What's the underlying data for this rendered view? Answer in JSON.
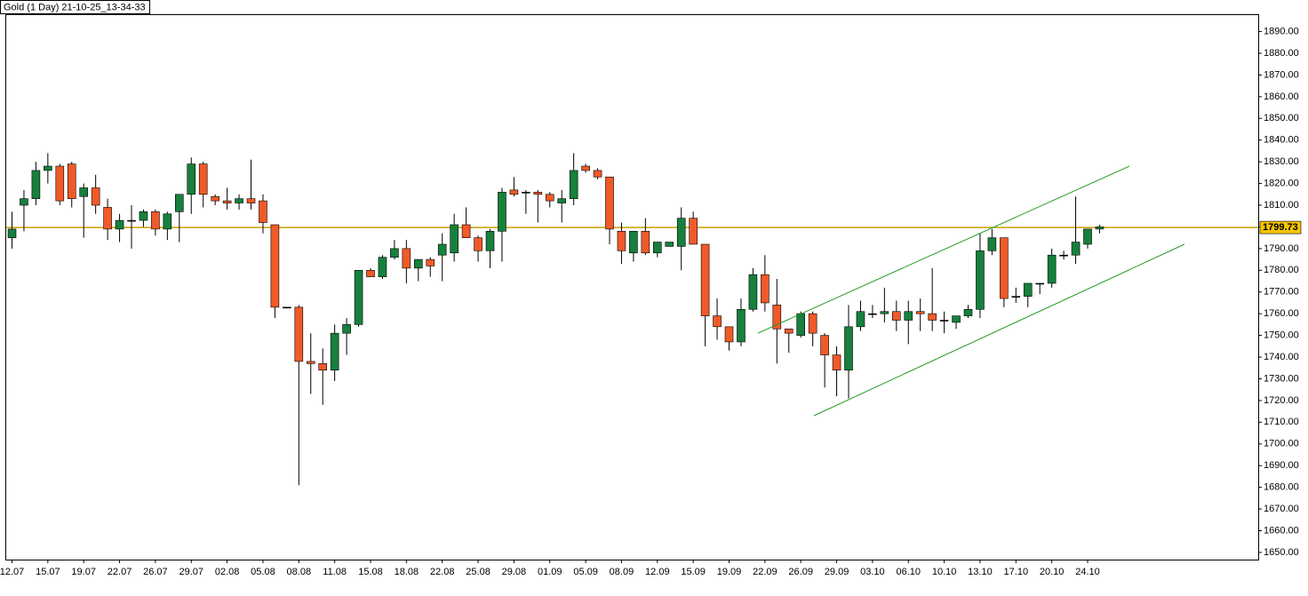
{
  "chart_data": {
    "type": "candlestick",
    "title": "Gold (1 Day) 21-10-25_13-34-33",
    "categories": [
      "12.07",
      null,
      null,
      "15.07",
      null,
      null,
      "19.07",
      null,
      null,
      "22.07",
      null,
      null,
      "26.07",
      null,
      null,
      "29.07",
      null,
      null,
      "02.08",
      null,
      null,
      "05.08",
      null,
      null,
      "08.08",
      null,
      null,
      "11.08",
      null,
      null,
      "15.08",
      null,
      null,
      "18.08",
      null,
      null,
      "22.08",
      null,
      null,
      "25.08",
      null,
      null,
      "29.08",
      null,
      null,
      "01.09",
      null,
      null,
      "05.09",
      null,
      null,
      "08.09",
      null,
      null,
      "12.09",
      null,
      null,
      "15.09",
      null,
      null,
      "19.09",
      null,
      null,
      "22.09",
      null,
      null,
      "26.09",
      null,
      null,
      "29.09",
      null,
      null,
      "03.10",
      null,
      null,
      "06.10",
      null,
      null,
      "10.10",
      null,
      null,
      "13.10",
      null,
      null,
      "17.10",
      null,
      null,
      "20.10",
      null,
      null,
      "24.10",
      null
    ],
    "open": [
      1795,
      1810,
      1813,
      1826,
      1828,
      1829,
      1814,
      1818,
      1809,
      1799,
      1803,
      1803,
      1807,
      1799,
      1807,
      1815,
      1829,
      1814,
      1812,
      1811,
      1813,
      1812,
      1801,
      1763,
      1763,
      1738,
      1737,
      1734,
      1751,
      1755,
      1780,
      1777,
      1786,
      1790,
      1781,
      1785,
      1787,
      1788,
      1801,
      1795,
      1789,
      1798,
      1817,
      1816,
      1816,
      1815,
      1811,
      1813,
      1828,
      1826,
      1823,
      1798,
      1788,
      1798,
      1788,
      1791,
      1791,
      1804,
      1792,
      1759,
      1754,
      1747,
      1762,
      1778,
      1764,
      1753,
      1750,
      1760,
      1750,
      1741,
      1734,
      1754,
      1760,
      1760,
      1761,
      1757,
      1761,
      1760,
      1757,
      1756,
      1759,
      1762,
      1789,
      1795,
      1768,
      1768,
      1774,
      1774,
      1787,
      1787,
      1792,
      1799
    ],
    "high": [
      1807,
      1817,
      1830,
      1834,
      1829,
      1830,
      1820,
      1824,
      1813,
      1806,
      1810,
      1808,
      1808,
      1807,
      1815,
      1832,
      1830,
      1815,
      1818,
      1815,
      1831,
      1815,
      1801,
      1763,
      1764,
      1751,
      1744,
      1755,
      1758,
      1780,
      1781,
      1787,
      1794,
      1794,
      1785,
      1786,
      1797,
      1806,
      1809,
      1796,
      1799,
      1818,
      1823,
      1817,
      1817,
      1816,
      1817,
      1834,
      1829,
      1827,
      1823,
      1802,
      1798,
      1804,
      1793,
      1793,
      1809,
      1807,
      1792,
      1767,
      1754,
      1767,
      1781,
      1787,
      1776,
      1753,
      1761,
      1761,
      1751,
      1745,
      1764,
      1766,
      1764,
      1772,
      1766,
      1766,
      1767,
      1781,
      1761,
      1759,
      1764,
      1797,
      1799,
      1795,
      1772,
      1774,
      1774,
      1790,
      1789,
      1814,
      1799,
      1801
    ],
    "low": [
      1790,
      1798,
      1810,
      1820,
      1810,
      1809,
      1795,
      1806,
      1794,
      1793,
      1790,
      1800,
      1796,
      1794,
      1793,
      1806,
      1809,
      1810,
      1808,
      1808,
      1808,
      1797,
      1758,
      1763,
      1681,
      1723,
      1718,
      1729,
      1741,
      1754,
      1777,
      1776,
      1785,
      1774,
      1775,
      1777,
      1775,
      1784,
      1795,
      1784,
      1781,
      1784,
      1814,
      1806,
      1802,
      1809,
      1802,
      1810,
      1825,
      1822,
      1792,
      1783,
      1784,
      1787,
      1786,
      1791,
      1780,
      1792,
      1745,
      1748,
      1743,
      1745,
      1761,
      1761,
      1737,
      1742,
      1749,
      1745,
      1726,
      1722,
      1721,
      1752,
      1758,
      1756,
      1752,
      1746,
      1752,
      1752,
      1751,
      1753,
      1758,
      1758,
      1787,
      1763,
      1765,
      1763,
      1769,
      1772,
      1785,
      1783,
      1790,
      1797
    ],
    "close": [
      1799,
      1813,
      1826,
      1828,
      1812,
      1813,
      1818,
      1810,
      1799,
      1803,
      1803,
      1807,
      1799,
      1806,
      1815,
      1829,
      1815,
      1812,
      1811,
      1813,
      1811,
      1802,
      1763,
      1763,
      1738,
      1737,
      1734,
      1751,
      1755,
      1780,
      1777,
      1786,
      1790,
      1781,
      1785,
      1782,
      1792,
      1801,
      1795,
      1789,
      1798,
      1816,
      1815,
      1816,
      1815,
      1812,
      1813,
      1826,
      1826,
      1823,
      1799,
      1789,
      1798,
      1788,
      1793,
      1793,
      1804,
      1792,
      1759,
      1754,
      1747,
      1762,
      1778,
      1765,
      1753,
      1751,
      1760,
      1751,
      1741,
      1734,
      1754,
      1761,
      1760,
      1761,
      1757,
      1761,
      1760,
      1757,
      1757,
      1759,
      1762,
      1789,
      1795,
      1767,
      1768,
      1774,
      1774,
      1787,
      1787,
      1793,
      1799,
      1800
    ],
    "up_color": "#16803c",
    "down_color": "#f05a28",
    "ylim": [
      1646.7,
      1898
    ],
    "yticks": [
      {
        "value": 1650,
        "label": "1650.00"
      },
      {
        "value": 1660,
        "label": "1660.00"
      },
      {
        "value": 1670,
        "label": "1670.00"
      },
      {
        "value": 1680,
        "label": "1680.00"
      },
      {
        "value": 1690,
        "label": "1690.00"
      },
      {
        "value": 1700,
        "label": "1700.00"
      },
      {
        "value": 1710,
        "label": "1710.00"
      },
      {
        "value": 1720,
        "label": "1720.00"
      },
      {
        "value": 1730,
        "label": "1730.00"
      },
      {
        "value": 1740,
        "label": "1740.00"
      },
      {
        "value": 1750,
        "label": "1750.00"
      },
      {
        "value": 1760,
        "label": "1760.00"
      },
      {
        "value": 1770,
        "label": "1770.00"
      },
      {
        "value": 1780,
        "label": "1780.00"
      },
      {
        "value": 1790,
        "label": "1790.00"
      },
      {
        "value": 1800,
        "label": "1800.00"
      },
      {
        "value": 1810,
        "label": "1810.00"
      },
      {
        "value": 1820,
        "label": "1820.00"
      },
      {
        "value": 1830,
        "label": "1830.00"
      },
      {
        "value": 1840,
        "label": "1840.00"
      },
      {
        "value": 1850,
        "label": "1850.00"
      },
      {
        "value": 1860,
        "label": "1860.00"
      },
      {
        "value": 1870,
        "label": "1870.00"
      },
      {
        "value": 1880,
        "label": "1880.00"
      },
      {
        "value": 1890,
        "label": "1890.00"
      }
    ],
    "price_line": {
      "value": 1799.73,
      "color": "#c8a000"
    },
    "trend_lines": [
      {
        "color": "#1f9a1f",
        "x": [
          62.4,
          93.5
        ],
        "y": [
          1751,
          1828
        ]
      },
      {
        "color": "#1f9a1f",
        "x": [
          67.1,
          98.1
        ],
        "y": [
          1713,
          1792
        ]
      }
    ]
  }
}
